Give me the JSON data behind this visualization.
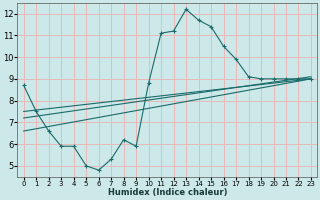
{
  "xlabel": "Humidex (Indice chaleur)",
  "xlim": [
    -0.5,
    23.5
  ],
  "ylim": [
    4.5,
    12.5
  ],
  "yticks": [
    5,
    6,
    7,
    8,
    9,
    10,
    11,
    12
  ],
  "xticks": [
    0,
    1,
    2,
    3,
    4,
    5,
    6,
    7,
    8,
    9,
    10,
    11,
    12,
    13,
    14,
    15,
    16,
    17,
    18,
    19,
    20,
    21,
    22,
    23
  ],
  "bg_color": "#cce8e8",
  "grid_color": "#e8b8b8",
  "line_color": "#1a6b6b",
  "main_line": {
    "x": [
      0,
      1,
      2,
      3,
      4,
      5,
      6,
      7,
      8,
      9,
      10,
      11,
      12,
      13,
      14,
      15,
      16,
      17,
      18,
      19,
      20,
      21,
      22,
      23
    ],
    "y": [
      8.7,
      7.5,
      6.6,
      5.9,
      5.9,
      5.0,
      4.8,
      5.3,
      6.2,
      5.9,
      8.8,
      11.1,
      11.2,
      12.2,
      11.7,
      11.4,
      10.5,
      9.9,
      9.1,
      9.0,
      9.0,
      9.0,
      9.0,
      9.0
    ]
  },
  "trend_lines": [
    {
      "x": [
        0,
        23
      ],
      "y": [
        7.5,
        9.0
      ]
    },
    {
      "x": [
        0,
        23
      ],
      "y": [
        7.2,
        9.1
      ]
    },
    {
      "x": [
        0,
        23
      ],
      "y": [
        6.6,
        9.0
      ]
    }
  ]
}
